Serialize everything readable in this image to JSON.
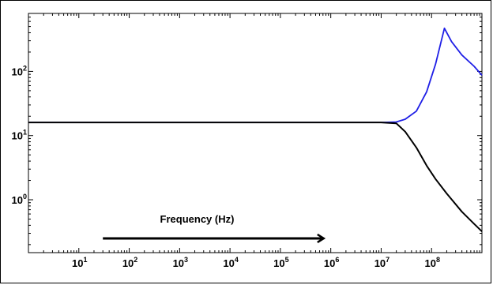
{
  "chart_data": {
    "type": "line",
    "title": "",
    "xlabel": "",
    "ylabel": "",
    "x_scale": "log",
    "y_scale": "log",
    "xlim": [
      1,
      1000000000
    ],
    "ylim": [
      0.15,
      800
    ],
    "grid": false,
    "legend": "none",
    "x_ticks": [
      {
        "base": "10",
        "exp": "1",
        "value": 10
      },
      {
        "base": "10",
        "exp": "2",
        "value": 100
      },
      {
        "base": "10",
        "exp": "3",
        "value": 1000
      },
      {
        "base": "10",
        "exp": "4",
        "value": 10000
      },
      {
        "base": "10",
        "exp": "5",
        "value": 100000
      },
      {
        "base": "10",
        "exp": "6",
        "value": 1000000
      },
      {
        "base": "10",
        "exp": "7",
        "value": 10000000
      },
      {
        "base": "10",
        "exp": "8",
        "value": 100000000
      }
    ],
    "y_ticks": [
      {
        "base": "10",
        "exp": "0",
        "value": 1
      },
      {
        "base": "10",
        "exp": "1",
        "value": 10
      },
      {
        "base": "10",
        "exp": "2",
        "value": 100
      }
    ],
    "series": [
      {
        "color": "#1f1fe6",
        "x": [
          1,
          10,
          100,
          1000,
          10000,
          100000,
          1000000,
          10000000,
          20000000,
          30000000,
          50000000,
          80000000,
          120000000,
          180000000,
          250000000,
          400000000,
          700000000,
          1000000000
        ],
        "y": [
          16,
          16,
          16,
          16,
          16,
          16,
          16,
          16,
          16.3,
          18,
          24,
          48,
          130,
          470,
          290,
          180,
          120,
          87
        ]
      },
      {
        "color": "#000000",
        "x": [
          1,
          10,
          100,
          1000,
          10000,
          100000,
          1000000,
          10000000,
          20000000,
          30000000,
          50000000,
          80000000,
          120000000,
          200000000,
          400000000,
          700000000,
          1000000000
        ],
        "y": [
          16,
          16,
          16,
          16,
          16,
          16,
          16,
          16,
          15.5,
          11.5,
          6.5,
          3.4,
          2.1,
          1.25,
          0.65,
          0.42,
          0.32
        ]
      }
    ],
    "annotations": [
      {
        "text": "Frequency (Hz)",
        "x_from": 30,
        "x_to": 700000,
        "y": 0.25,
        "arrow": "right"
      }
    ]
  }
}
